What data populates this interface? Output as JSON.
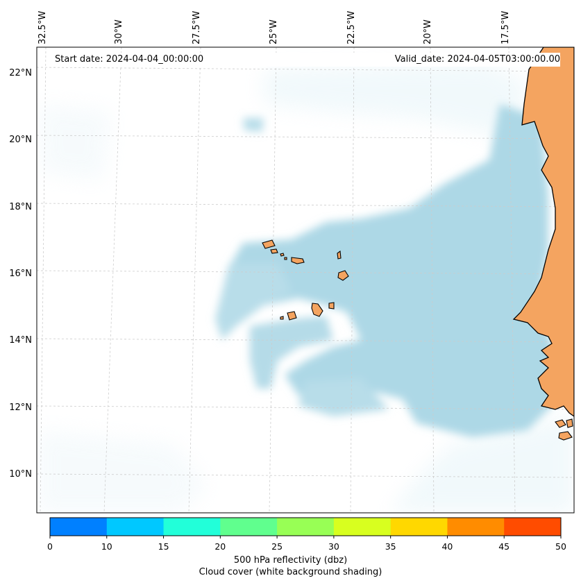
{
  "header": {
    "start_label": "Start date: 2024-04-04_00:00:00",
    "valid_label": "Valid_date: 2024-04-05T03:00:00.00"
  },
  "axes": {
    "lon_labels": [
      "32.5°W",
      "30°W",
      "27.5°W",
      "25°W",
      "22.5°W",
      "20°W",
      "17.5°W"
    ],
    "lat_labels": [
      "22°N",
      "20°N",
      "18°N",
      "16°N",
      "14°N",
      "12°N",
      "10°N"
    ]
  },
  "colorbar": {
    "ticks": [
      "0",
      "10",
      "15",
      "20",
      "25",
      "30",
      "35",
      "40",
      "45",
      "50"
    ],
    "colors": [
      "#0080ff",
      "#00c8ff",
      "#22ffd9",
      "#60ff8e",
      "#98ff55",
      "#d8ff1f",
      "#ffd800",
      "#ff8c00",
      "#ff4c00"
    ],
    "title_line1": "500 hPa reflectivity (dbz)",
    "title_line2": "Cloud cover (white background shading)"
  },
  "colors": {
    "land": "#f4a460",
    "cloud": "#add8e6",
    "grid": "#cccccc"
  }
}
